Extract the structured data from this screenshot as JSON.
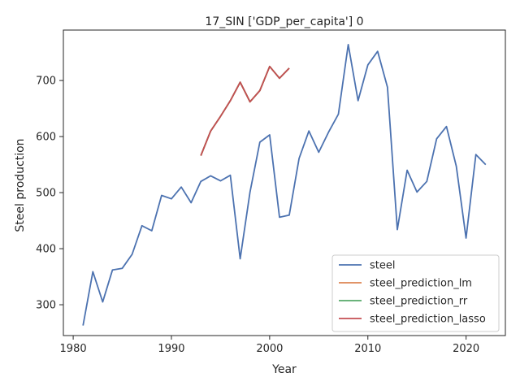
{
  "chart_data": {
    "type": "line",
    "title": "17_SIN ['GDP_per_capita'] 0",
    "xlabel": "Year",
    "ylabel": "Steel production",
    "xlim": [
      1979,
      2024
    ],
    "ylim": [
      245,
      790
    ],
    "xticks": [
      1980,
      1990,
      2000,
      2010,
      2020
    ],
    "yticks": [
      300,
      400,
      500,
      600,
      700
    ],
    "grid": false,
    "legend_position": "lower-right",
    "series": [
      {
        "name": "steel",
        "color": "#4c72b0",
        "x": [
          1981,
          1982,
          1983,
          1984,
          1985,
          1986,
          1987,
          1988,
          1989,
          1990,
          1991,
          1992,
          1993,
          1994,
          1995,
          1996,
          1997,
          1998,
          1999,
          2000,
          2001,
          2002,
          2003,
          2004,
          2005,
          2006,
          2007,
          2008,
          2009,
          2010,
          2011,
          2012,
          2013,
          2014,
          2015,
          2016,
          2017,
          2018,
          2019,
          2020,
          2021,
          2022
        ],
        "y": [
          263,
          359,
          305,
          362,
          365,
          390,
          441,
          432,
          495,
          489,
          510,
          482,
          520,
          530,
          521,
          531,
          382,
          501,
          590,
          603,
          456,
          460,
          561,
          610,
          572,
          608,
          640,
          764,
          664,
          728,
          752,
          688,
          434,
          540,
          501,
          520,
          596,
          618,
          547,
          419,
          568,
          550
        ]
      },
      {
        "name": "steel_prediction_lm",
        "color": "#dd8452",
        "x": [
          1993,
          1994,
          1995,
          1996,
          1997,
          1998,
          1999,
          2000,
          2001,
          2002
        ],
        "y": [
          566,
          610,
          636,
          664,
          697,
          662,
          682,
          725,
          704,
          722
        ]
      },
      {
        "name": "steel_prediction_rr",
        "color": "#55a868",
        "x": [
          1993,
          1994,
          1995,
          1996,
          1997,
          1998,
          1999,
          2000,
          2001,
          2002
        ],
        "y": [
          566,
          610,
          636,
          664,
          697,
          662,
          682,
          725,
          704,
          722
        ]
      },
      {
        "name": "steel_prediction_lasso",
        "color": "#c44e52",
        "x": [
          1993,
          1994,
          1995,
          1996,
          1997,
          1998,
          1999,
          2000,
          2001,
          2002
        ],
        "y": [
          566,
          610,
          636,
          664,
          697,
          662,
          682,
          725,
          704,
          722
        ]
      }
    ]
  }
}
